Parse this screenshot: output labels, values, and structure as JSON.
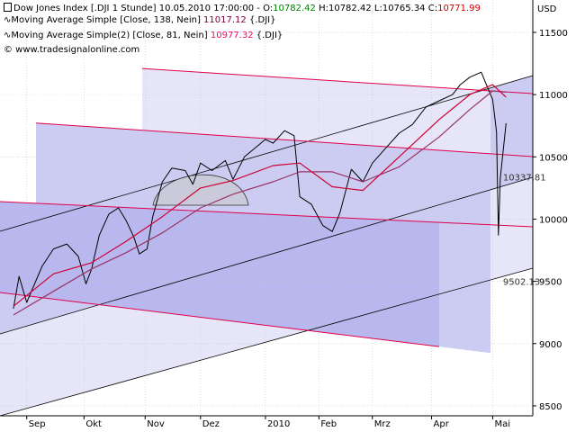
{
  "header": {
    "line1": {
      "name": "Dow Jones Index [.DJI  1 Stunde]",
      "datetime": "10.05.2010 17:00:00 -",
      "o_label": "O:",
      "o_value": "10782.42",
      "h_label": "H:",
      "h_value": "10782.42",
      "l_label": "L:",
      "l_value": "10765.34",
      "c_label": "C:",
      "c_value": "10771.99"
    },
    "line2": {
      "text": "Moving Average Simple [Close, 138, Nein]",
      "value": "11017.12",
      "suffix": "{.DJI}"
    },
    "line3": {
      "text": "Moving Average Simple(2) [Close, 81, Nein]",
      "value": "10977.32",
      "suffix": "{.DJI}"
    },
    "line4": {
      "text": "© www.tradesignalonline.com"
    }
  },
  "colors": {
    "price": "#000000",
    "ma138": "#993366",
    "ma81": "#cc0033",
    "ma81_header": "#ff0066",
    "ma138_header": "#800040",
    "o_value": "#008000",
    "c_value": "#cc0000",
    "channel_red": "#e0004a",
    "channel_black": "#000000",
    "band_light": "#e6e6f8",
    "band_mid": "#ccccf2",
    "band_dark": "#b8b8ee",
    "grid": "#c8c8c8"
  },
  "chart_data": {
    "type": "line",
    "title": "Dow Jones Index [.DJI  1 Stunde]",
    "ylabel": "USD",
    "ylim": [
      8420,
      11760
    ],
    "yticks": [
      8500,
      9000,
      9500,
      10000,
      10500,
      11000,
      11500
    ],
    "x_ticks": [
      "Sep",
      "Okt",
      "Nov",
      "Dez",
      "2010",
      "Feb",
      "Mrz",
      "Apr",
      "Mai"
    ],
    "grid": true,
    "series": [
      {
        "name": "Dow Jones Index",
        "x": [
          "2009-08-25",
          "2009-08-28",
          "2009-09-01",
          "2009-09-04",
          "2009-09-09",
          "2009-09-15",
          "2009-09-22",
          "2009-09-28",
          "2009-10-02",
          "2009-10-05",
          "2009-10-09",
          "2009-10-14",
          "2009-10-19",
          "2009-10-23",
          "2009-10-27",
          "2009-10-30",
          "2009-11-03",
          "2009-11-06",
          "2009-11-11",
          "2009-11-16",
          "2009-11-23",
          "2009-11-27",
          "2009-12-01",
          "2009-12-07",
          "2009-12-14",
          "2009-12-18",
          "2009-12-24",
          "2010-01-04",
          "2010-01-08",
          "2010-01-14",
          "2010-01-19",
          "2010-01-22",
          "2010-01-28",
          "2010-02-03",
          "2010-02-08",
          "2010-02-12",
          "2010-02-18",
          "2010-02-24",
          "2010-03-01",
          "2010-03-08",
          "2010-03-15",
          "2010-03-22",
          "2010-03-29",
          "2010-04-05",
          "2010-04-12",
          "2010-04-16",
          "2010-04-21",
          "2010-04-27",
          "2010-05-03",
          "2010-05-05",
          "2010-05-06",
          "2010-05-07",
          "2010-05-10"
        ],
        "values": [
          9280,
          9540,
          9330,
          9440,
          9620,
          9760,
          9800,
          9700,
          9480,
          9600,
          9870,
          10040,
          10090,
          9990,
          9860,
          9720,
          9760,
          10020,
          10300,
          10410,
          10390,
          10280,
          10450,
          10390,
          10470,
          10320,
          10500,
          10640,
          10610,
          10710,
          10670,
          10180,
          10120,
          9950,
          9900,
          10050,
          10400,
          10300,
          10450,
          10570,
          10690,
          10760,
          10900,
          10950,
          11000,
          11080,
          11140,
          11180,
          10960,
          10700,
          9870,
          10330,
          10770
        ]
      },
      {
        "name": "Moving Average Simple [Close, 138, Nein]",
        "x": [
          "2009-08-25",
          "2009-09-15",
          "2009-10-05",
          "2009-10-23",
          "2009-11-11",
          "2009-12-01",
          "2009-12-18",
          "2010-01-08",
          "2010-01-22",
          "2010-02-08",
          "2010-02-24",
          "2010-03-15",
          "2010-04-05",
          "2010-04-21",
          "2010-05-03",
          "2010-05-10"
        ],
        "values": [
          9230,
          9420,
          9600,
          9730,
          9890,
          10090,
          10200,
          10300,
          10380,
          10380,
          10300,
          10420,
          10660,
          10880,
          11030,
          11020
        ]
      },
      {
        "name": "Moving Average Simple(2) [Close, 81, Nein]",
        "x": [
          "2009-08-25",
          "2009-09-15",
          "2009-10-05",
          "2009-10-23",
          "2009-11-11",
          "2009-12-01",
          "2009-12-18",
          "2010-01-08",
          "2010-01-22",
          "2010-02-08",
          "2010-02-24",
          "2010-03-15",
          "2010-04-05",
          "2010-04-21",
          "2010-05-03",
          "2010-05-10"
        ],
        "values": [
          9300,
          9560,
          9650,
          9820,
          10020,
          10250,
          10310,
          10430,
          10450,
          10260,
          10230,
          10500,
          10800,
          11000,
          11080,
          10980
        ]
      }
    ],
    "annotations": [
      {
        "label": "10337.81",
        "x": "2010-05-07",
        "y": 10337.81
      },
      {
        "label": "9502.13",
        "x": "2010-05-07",
        "y": 9502.13
      }
    ]
  }
}
